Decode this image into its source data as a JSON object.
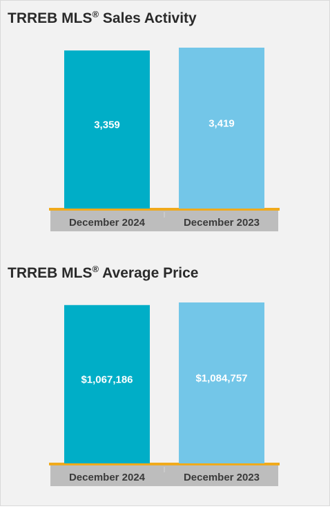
{
  "colors": {
    "bar_2024": "#00AEC7",
    "bar_2023": "#73C6E8",
    "baseline": "#F0AA1C",
    "category_band": "#BDBDBD",
    "background": "#F2F2F2"
  },
  "chart_data": [
    {
      "type": "bar",
      "title": "TRREB MLS",
      "title_mark": "®",
      "title_suffix": " Sales Activity",
      "categories": [
        "December 2024",
        "December 2023"
      ],
      "values": [
        3359,
        3419
      ],
      "data_labels": [
        "3,359",
        "3,419"
      ],
      "grid": false,
      "legend": "none"
    },
    {
      "type": "bar",
      "title": "TRREB MLS",
      "title_mark": "®",
      "title_suffix": " Average Price",
      "categories": [
        "December 2024",
        "December 2023"
      ],
      "values": [
        1067186,
        1084757
      ],
      "data_labels": [
        "$1,067,186",
        "$1,084,757"
      ],
      "grid": false,
      "legend": "none"
    }
  ]
}
